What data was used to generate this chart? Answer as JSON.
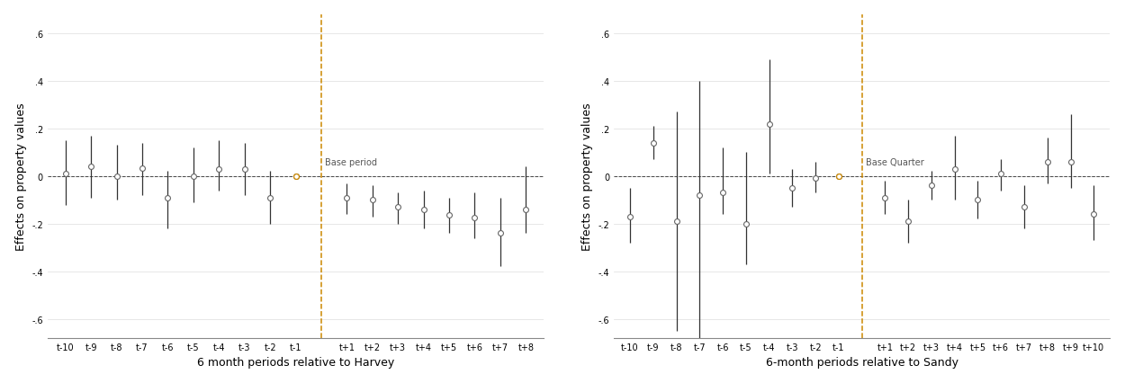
{
  "harvey": {
    "xlabel": "6 month periods relative to Harvey",
    "ylabel": "Effects on property values",
    "xlabels": [
      "t-10",
      "t-9",
      "t-8",
      "t-7",
      "t-6",
      "t-5",
      "t-4",
      "t-3",
      "t-2",
      "t-1",
      "t+1",
      "t+2",
      "t+3",
      "t+4",
      "t+5",
      "t+6",
      "t+7",
      "t+8"
    ],
    "x": [
      0,
      1,
      2,
      3,
      4,
      5,
      6,
      7,
      8,
      9,
      11,
      12,
      13,
      14,
      15,
      16,
      17,
      18
    ],
    "y": [
      0.01,
      0.04,
      0.0,
      0.035,
      -0.09,
      0.0,
      0.03,
      0.03,
      -0.09,
      0.0,
      -0.09,
      -0.1,
      -0.13,
      -0.14,
      -0.165,
      -0.175,
      -0.24,
      -0.14
    ],
    "ci_low": [
      -0.12,
      -0.09,
      -0.1,
      -0.08,
      -0.22,
      -0.11,
      -0.06,
      -0.08,
      -0.2,
      0.0,
      -0.16,
      -0.17,
      -0.2,
      -0.22,
      -0.24,
      -0.26,
      -0.38,
      -0.24
    ],
    "ci_high": [
      0.15,
      0.17,
      0.13,
      0.14,
      0.02,
      0.12,
      0.15,
      0.14,
      0.02,
      0.0,
      -0.03,
      -0.04,
      -0.07,
      -0.06,
      -0.09,
      -0.07,
      -0.09,
      0.04
    ],
    "base_idx": 9,
    "base_label": "Base period",
    "vline_x": 10.0,
    "ylim": [
      -0.68,
      0.68
    ],
    "yticks": [
      -0.6,
      -0.4,
      -0.2,
      0.0,
      0.2,
      0.4,
      0.6
    ],
    "ytick_labels": [
      "-.6",
      "-.4",
      "-.2",
      "0",
      ".2",
      ".4",
      ".6"
    ]
  },
  "sandy": {
    "xlabel": "6-month periods relative to Sandy",
    "ylabel": "Effects on property values",
    "xlabels": [
      "t-10",
      "t-9",
      "t-8",
      "t-7",
      "t-6",
      "t-5",
      "t-4",
      "t-3",
      "t-2",
      "t-1",
      "t+1",
      "t+2",
      "t+3",
      "t+4",
      "t+5",
      "t+6",
      "t+7",
      "t+8",
      "t+9",
      "t+10"
    ],
    "x": [
      0,
      1,
      2,
      3,
      4,
      5,
      6,
      7,
      8,
      9,
      11,
      12,
      13,
      14,
      15,
      16,
      17,
      18,
      19,
      20
    ],
    "y": [
      -0.17,
      0.14,
      -0.19,
      -0.08,
      -0.07,
      -0.2,
      0.22,
      -0.05,
      -0.01,
      0.0,
      -0.09,
      -0.19,
      -0.04,
      0.03,
      -0.1,
      0.01,
      -0.13,
      0.06,
      0.06,
      -0.16
    ],
    "ci_low": [
      -0.28,
      0.07,
      -0.65,
      -0.68,
      -0.16,
      -0.37,
      0.01,
      -0.13,
      -0.07,
      0.0,
      -0.16,
      -0.28,
      -0.1,
      -0.1,
      -0.18,
      -0.06,
      -0.22,
      -0.03,
      -0.05,
      -0.27
    ],
    "ci_high": [
      -0.05,
      0.21,
      0.27,
      0.4,
      0.12,
      0.1,
      0.49,
      0.03,
      0.06,
      0.0,
      -0.02,
      -0.1,
      0.02,
      0.17,
      -0.02,
      0.07,
      -0.04,
      0.16,
      0.26,
      -0.04
    ],
    "base_idx": 9,
    "base_label": "Base Quarter",
    "vline_x": 10.0,
    "ylim": [
      -0.68,
      0.68
    ],
    "yticks": [
      -0.6,
      -0.4,
      -0.2,
      0.0,
      0.2,
      0.4,
      0.6
    ],
    "ytick_labels": [
      "-.6",
      "-.4",
      "-.2",
      "0",
      ".2",
      ".4",
      ".6"
    ]
  },
  "marker_color": "#666666",
  "marker_face": "white",
  "error_color": "#333333",
  "dashed_color": "#444444",
  "vline_color": "#cc8800",
  "base_marker_color": "#cc8800",
  "background_color": "#ffffff",
  "grid_color": "#dddddd"
}
